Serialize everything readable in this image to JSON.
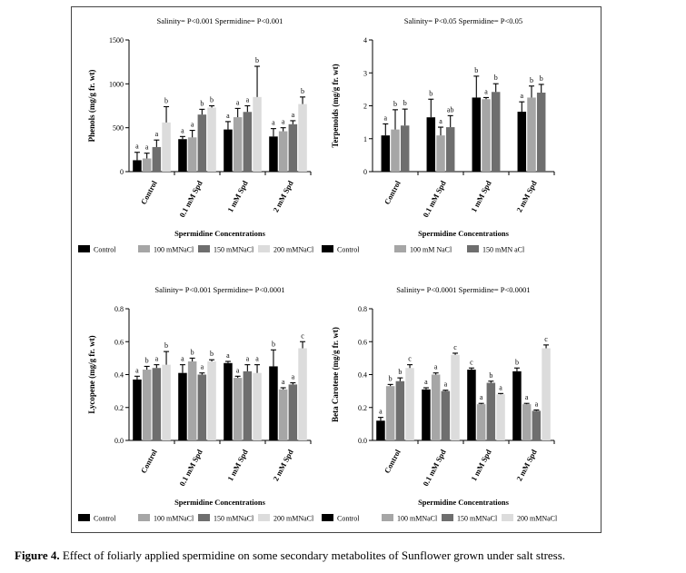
{
  "caption": {
    "label": "Figure 4.",
    "text": "Effect of foliarly applied spermidine on some secondary metabolites of Sunflower grown under salt stress."
  },
  "colors": {
    "series": [
      "#000000",
      "#a6a6a6",
      "#6e6e6e",
      "#dcdcdc"
    ]
  },
  "chart_data": [
    {
      "type": "bar",
      "title": "Salinity= P<0.001   Spermidine= P<0.001",
      "xlabel": "Spermidine Concentrations",
      "ylabel": "Phenols (mg/g fr. wt)",
      "ylim": [
        0,
        1500
      ],
      "yticks": [
        "0",
        "500",
        "1000",
        "1500"
      ],
      "categories": [
        "Control",
        "0.1 mM Spd",
        "1 mM Spd",
        "2 mM Spd"
      ],
      "legend": [
        "Control",
        "100 mMNaCl",
        "150 mMNaCl",
        "200 mMNaCl"
      ],
      "series": [
        {
          "name": "Control",
          "values": [
            130,
            370,
            480,
            400
          ],
          "errors": [
            90,
            30,
            90,
            90
          ],
          "letters": [
            "a",
            "a",
            "a",
            "a"
          ]
        },
        {
          "name": "100 mMNaCl",
          "values": [
            150,
            390,
            620,
            460
          ],
          "errors": [
            60,
            80,
            100,
            40
          ],
          "letters": [
            "a",
            "a",
            "a",
            "a"
          ]
        },
        {
          "name": "150 mMNaCl",
          "values": [
            280,
            650,
            680,
            540
          ],
          "errors": [
            80,
            60,
            70,
            40
          ],
          "letters": [
            "a",
            "b",
            "a",
            "a"
          ]
        },
        {
          "name": "200 mMNaCl",
          "values": [
            560,
            730,
            850,
            770
          ],
          "errors": [
            180,
            20,
            350,
            80
          ],
          "letters": [
            "b",
            "b",
            "b",
            "b"
          ]
        }
      ]
    },
    {
      "type": "bar",
      "title": "Salinity= P<0.05   Spermidine= P<0.05",
      "xlabel": "Spermidine Concentrations",
      "ylabel": "Terpenoids (mg/g fr. wt)",
      "ylim": [
        0,
        4
      ],
      "yticks": [
        "0",
        "1",
        "2",
        "3",
        "4"
      ],
      "categories": [
        "Control",
        "0.1 mM Spd",
        "1 mM Spd",
        "2 mM Spd"
      ],
      "legend": [
        "Control",
        "100 mM NaCl",
        "150 mMN aCl"
      ],
      "series": [
        {
          "name": "Control",
          "values": [
            1.1,
            1.65,
            2.25,
            1.82
          ],
          "errors": [
            0.35,
            0.55,
            0.65,
            0.3
          ],
          "letters": [
            "a",
            "b",
            "b",
            "a"
          ]
        },
        {
          "name": "100 mM NaCl",
          "values": [
            1.28,
            1.1,
            2.2,
            2.25
          ],
          "errors": [
            0.6,
            0.25,
            0.05,
            0.35
          ],
          "letters": [
            "b",
            "a",
            "a",
            "b"
          ]
        },
        {
          "name": "150 mMN aCl",
          "values": [
            1.4,
            1.35,
            2.42,
            2.4
          ],
          "errors": [
            0.5,
            0.35,
            0.25,
            0.25
          ],
          "letters": [
            "b",
            "ab",
            "b",
            "b"
          ]
        }
      ]
    },
    {
      "type": "bar",
      "title": "Salinity= P<0.001   Spermidine= P<0.0001",
      "xlabel": "Spermidine Concentrations",
      "ylabel": "Lycopene (mg/g fr. wt)",
      "ylim": [
        0,
        0.8
      ],
      "yticks": [
        "0.0",
        "0.2",
        "0.4",
        "0.6",
        "0.8"
      ],
      "categories": [
        "Control",
        "0.1 mM Spd",
        "1 mM Spd",
        "2 mM Spd"
      ],
      "legend": [
        "Control",
        "100 mMNaCl",
        "150 mMNaCl",
        "200 mMNaCl"
      ],
      "series": [
        {
          "name": "Control",
          "values": [
            0.37,
            0.41,
            0.47,
            0.45
          ],
          "errors": [
            0.02,
            0.05,
            0.01,
            0.1
          ],
          "letters": [
            "a",
            "a",
            "a",
            "b"
          ]
        },
        {
          "name": "100 mMNaCl",
          "values": [
            0.43,
            0.48,
            0.38,
            0.31
          ],
          "errors": [
            0.02,
            0.02,
            0.01,
            0.01
          ],
          "letters": [
            "b",
            "b",
            "a",
            "a"
          ]
        },
        {
          "name": "150 mMNaCl",
          "values": [
            0.44,
            0.4,
            0.42,
            0.34
          ],
          "errors": [
            0.02,
            0.01,
            0.04,
            0.01
          ],
          "letters": [
            "a",
            "a",
            "a",
            "a"
          ]
        },
        {
          "name": "200 mMNaCl",
          "values": [
            0.46,
            0.48,
            0.41,
            0.56
          ],
          "errors": [
            0.08,
            0.01,
            0.05,
            0.04
          ],
          "letters": [
            "b",
            "b",
            "a",
            "c"
          ]
        }
      ]
    },
    {
      "type": "bar",
      "title": "Salinity= P<0.0001   Spermidine= P<0.0001",
      "xlabel": "Spermidine Concentrations",
      "ylabel": "Beta Carotene (mg/g fr. wt)",
      "ylim": [
        0,
        0.8
      ],
      "yticks": [
        "0.0",
        "0.2",
        "0.4",
        "0.6",
        "0.8"
      ],
      "categories": [
        "Control",
        "0.1 mM Spd",
        "1 mM Spd",
        "2 mM Spd"
      ],
      "legend": [
        "Control",
        "100 mMNaCl",
        "150 mMNaCl",
        "200 mMNaCl"
      ],
      "series": [
        {
          "name": "Control",
          "values": [
            0.12,
            0.31,
            0.43,
            0.42
          ],
          "errors": [
            0.02,
            0.01,
            0.01,
            0.02
          ],
          "letters": [
            "a",
            "a",
            "c",
            "b"
          ]
        },
        {
          "name": "100 mMNaCl",
          "values": [
            0.33,
            0.4,
            0.22,
            0.22
          ],
          "errors": [
            0.01,
            0.01,
            0.005,
            0.005
          ],
          "letters": [
            "b",
            "a",
            "a",
            "a"
          ]
        },
        {
          "name": "150 mMNaCl",
          "values": [
            0.36,
            0.3,
            0.35,
            0.18
          ],
          "errors": [
            0.02,
            0.005,
            0.01,
            0.005
          ],
          "letters": [
            "b",
            "a",
            "b",
            "a"
          ]
        },
        {
          "name": "200 mMNaCl",
          "values": [
            0.44,
            0.52,
            0.28,
            0.56
          ],
          "errors": [
            0.02,
            0.01,
            0.005,
            0.02
          ],
          "letters": [
            "c",
            "c",
            "a",
            "c"
          ]
        }
      ]
    }
  ]
}
